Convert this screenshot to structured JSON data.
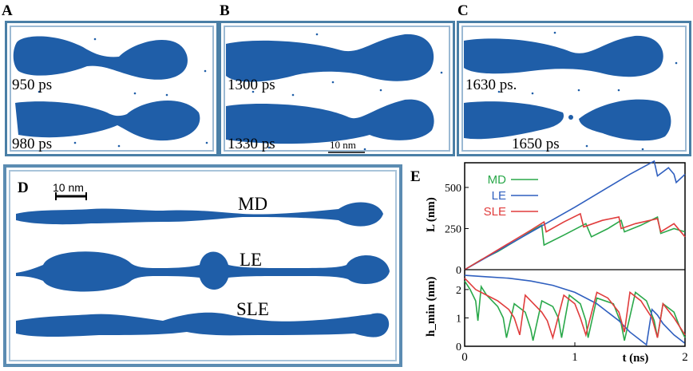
{
  "figure": {
    "colors": {
      "drop": "#1f5ea8",
      "frame": "#4a7fa6",
      "md": "#2aa84a",
      "le": "#2f5fbf",
      "sle": "#e03c3c"
    },
    "panels": {
      "A": {
        "letter": "A",
        "top_time": "950 ps",
        "bottom_time": "980 ps"
      },
      "B": {
        "letter": "B",
        "top_time": "1300 ps",
        "bottom_time": "1330 ps",
        "scalebar": "10 nm"
      },
      "C": {
        "letter": "C",
        "top_time": "1630 ps.",
        "bottom_time": "1650 ps"
      },
      "D": {
        "letter": "D",
        "scalebar": "10 nm",
        "rows": [
          "MD",
          "LE",
          "SLE"
        ]
      },
      "E": {
        "letter": "E"
      }
    }
  },
  "chart_data": [
    {
      "type": "line",
      "panel": "E-top",
      "ylabel": "L (nm)",
      "xlim": [
        0,
        2
      ],
      "ylim": [
        0,
        650
      ],
      "yticks": [
        "0",
        "250",
        "500"
      ],
      "legend": [
        "MD",
        "LE",
        "SLE"
      ],
      "legend_position": "top-left",
      "series": [
        {
          "name": "MD",
          "color": "#2aa84a",
          "x": [
            0,
            0.15,
            0.3,
            0.5,
            0.62,
            0.7,
            0.72,
            0.9,
            1.1,
            1.15,
            1.3,
            1.42,
            1.45,
            1.6,
            1.75,
            1.78,
            1.9,
            2.0
          ],
          "y": [
            0,
            60,
            110,
            190,
            240,
            270,
            150,
            210,
            280,
            200,
            250,
            300,
            230,
            270,
            320,
            220,
            250,
            230
          ]
        },
        {
          "name": "LE",
          "color": "#2f5fbf",
          "x": [
            0,
            0.5,
            1.0,
            1.5,
            1.72,
            1.75,
            1.85,
            1.9,
            1.92,
            2.0
          ],
          "y": [
            0,
            190,
            380,
            580,
            660,
            570,
            620,
            580,
            530,
            580
          ]
        },
        {
          "name": "SLE",
          "color": "#e03c3c",
          "x": [
            0,
            0.2,
            0.4,
            0.6,
            0.72,
            0.74,
            0.9,
            1.05,
            1.08,
            1.25,
            1.4,
            1.42,
            1.55,
            1.75,
            1.78,
            1.9,
            2.0
          ],
          "y": [
            0,
            80,
            160,
            240,
            290,
            230,
            290,
            340,
            260,
            300,
            320,
            250,
            280,
            310,
            230,
            280,
            200
          ]
        }
      ]
    },
    {
      "type": "line",
      "panel": "E-bottom",
      "xlabel": "t (ns)",
      "ylabel": "h_min (nm)",
      "xlim": [
        0,
        2
      ],
      "ylim": [
        0,
        2.7
      ],
      "xticks": [
        "0",
        "1",
        "2"
      ],
      "yticks": [
        "0",
        "1",
        "2"
      ],
      "series": [
        {
          "name": "MD",
          "color": "#2aa84a",
          "x": [
            0,
            0.05,
            0.1,
            0.12,
            0.15,
            0.2,
            0.3,
            0.35,
            0.38,
            0.45,
            0.55,
            0.6,
            0.62,
            0.7,
            0.8,
            0.85,
            0.88,
            0.95,
            1.05,
            1.1,
            1.12,
            1.2,
            1.35,
            1.42,
            1.45,
            1.55,
            1.65,
            1.72,
            1.75,
            1.8,
            1.9,
            1.95,
            2.0
          ],
          "y": [
            2.3,
            2.0,
            1.6,
            0.9,
            2.1,
            1.8,
            1.4,
            1.0,
            0.3,
            1.5,
            1.2,
            0.6,
            0.2,
            1.6,
            1.4,
            1.0,
            0.3,
            1.8,
            1.5,
            0.9,
            0.3,
            1.7,
            1.5,
            0.8,
            0.2,
            1.9,
            1.6,
            0.9,
            0.3,
            1.5,
            1.2,
            0.7,
            0.3
          ]
        },
        {
          "name": "LE",
          "color": "#2f5fbf",
          "x": [
            0,
            0.2,
            0.4,
            0.6,
            0.8,
            1.0,
            1.2,
            1.4,
            1.5,
            1.6,
            1.65,
            1.7,
            1.75,
            1.8,
            1.9,
            2.0
          ],
          "y": [
            2.5,
            2.45,
            2.4,
            2.3,
            2.15,
            1.9,
            1.5,
            0.9,
            0.5,
            0.2,
            0.05,
            1.3,
            1.1,
            0.8,
            0.4,
            0.1
          ]
        },
        {
          "name": "SLE",
          "color": "#e03c3c",
          "x": [
            0,
            0.1,
            0.2,
            0.3,
            0.4,
            0.45,
            0.5,
            0.55,
            0.6,
            0.7,
            0.75,
            0.8,
            0.9,
            1.0,
            1.05,
            1.1,
            1.2,
            1.3,
            1.4,
            1.45,
            1.5,
            1.6,
            1.7,
            1.75,
            1.8,
            1.9,
            2.0
          ],
          "y": [
            2.4,
            2.0,
            1.8,
            1.6,
            1.3,
            1.0,
            0.4,
            1.8,
            1.6,
            1.2,
            0.9,
            0.3,
            1.8,
            1.5,
            1.0,
            0.4,
            1.9,
            1.7,
            1.2,
            0.5,
            1.9,
            1.6,
            1.0,
            0.3,
            1.5,
            1.0,
            0.4
          ]
        }
      ]
    }
  ]
}
